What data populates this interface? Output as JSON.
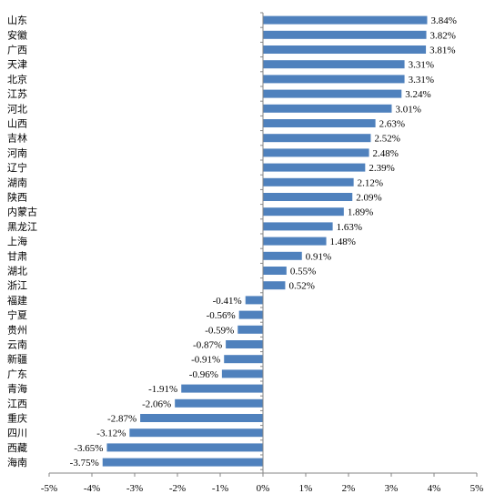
{
  "chart_data": {
    "type": "bar",
    "orientation": "horizontal",
    "categories": [
      "山东",
      "安徽",
      "广西",
      "天津",
      "北京",
      "江苏",
      "河北",
      "山西",
      "吉林",
      "河南",
      "辽宁",
      "湖南",
      "陕西",
      "内蒙古",
      "黑龙江",
      "上海",
      "甘肃",
      "湖北",
      "浙江",
      "福建",
      "宁夏",
      "贵州",
      "云南",
      "新疆",
      "广东",
      "青海",
      "江西",
      "重庆",
      "四川",
      "西藏",
      "海南"
    ],
    "values": [
      3.84,
      3.82,
      3.81,
      3.31,
      3.31,
      3.24,
      3.01,
      2.63,
      2.52,
      2.48,
      2.39,
      2.12,
      2.09,
      1.89,
      1.63,
      1.48,
      0.91,
      0.55,
      0.52,
      -0.41,
      -0.56,
      -0.59,
      -0.87,
      -0.91,
      -0.96,
      -1.91,
      -2.06,
      -2.87,
      -3.12,
      -3.65,
      -3.75
    ],
    "value_labels": [
      "3.84%",
      "3.82%",
      "3.81%",
      "3.31%",
      "3.31%",
      "3.24%",
      "3.01%",
      "2.63%",
      "2.52%",
      "2.48%",
      "2.39%",
      "2.12%",
      "2.09%",
      "1.89%",
      "1.63%",
      "1.48%",
      "0.91%",
      "0.55%",
      "0.52%",
      "-0.41%",
      "-0.56%",
      "-0.59%",
      "-0.87%",
      "-0.91%",
      "-0.96%",
      "-1.91%",
      "-2.06%",
      "-2.87%",
      "-3.12%",
      "-3.65%",
      "-3.75%"
    ],
    "xlim": [
      -5,
      5
    ],
    "x_ticks": [
      -5,
      -4,
      -3,
      -2,
      -1,
      0,
      1,
      2,
      3,
      4,
      5
    ],
    "x_tick_labels": [
      "-5%",
      "-4%",
      "-3%",
      "-2%",
      "-1%",
      "0%",
      "1%",
      "2%",
      "3%",
      "4%",
      "5%"
    ],
    "grid": false,
    "legend": "none",
    "bar_color": "#4F81BD"
  }
}
